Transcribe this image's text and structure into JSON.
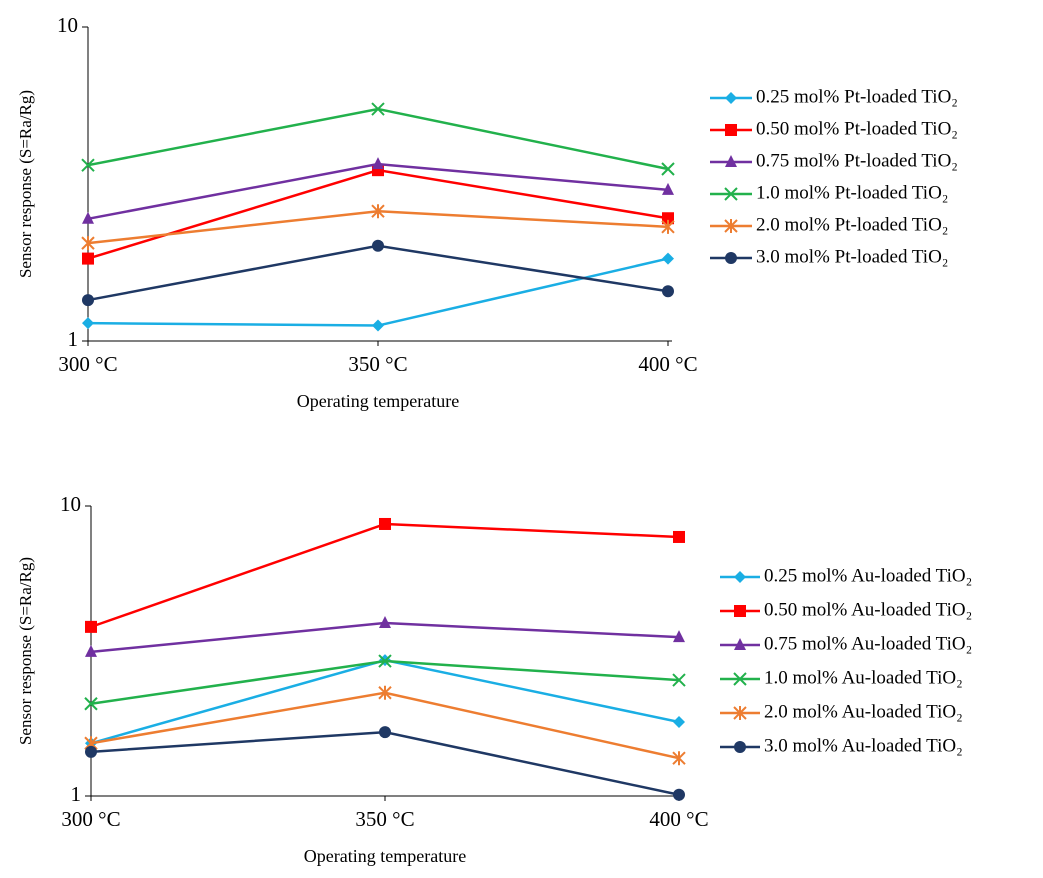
{
  "chart_data": [
    {
      "type": "line",
      "log_scale": true,
      "grid": false,
      "legend": "right",
      "x_label": "Operating temperature",
      "y_label": "Sensor response (S=Ra/Rg)",
      "categories": [
        "300 °C",
        "350 °C",
        "400 °C"
      ],
      "ylim": [
        1,
        10
      ],
      "yticks": [
        1,
        10
      ],
      "series": [
        {
          "name": "0.25 mol% Pt-loaded TiO₂",
          "color": "#1aaee4",
          "marker": "diamond",
          "values": [
            1.14,
            1.12,
            1.83
          ]
        },
        {
          "name": "0.50 mol% Pt-loaded TiO₂",
          "color": "#ff0000",
          "marker": "square",
          "values": [
            1.83,
            3.5,
            2.46
          ]
        },
        {
          "name": "0.75 mol% Pt-loaded TiO₂",
          "color": "#7030a0",
          "marker": "triangle",
          "values": [
            2.45,
            3.66,
            3.03
          ]
        },
        {
          "name": "1.0 mol% Pt-loaded TiO₂",
          "color": "#22b14c",
          "marker": "x",
          "values": [
            3.63,
            5.48,
            3.53
          ]
        },
        {
          "name": "2.0 mol% Pt-loaded TiO₂",
          "color": "#ed7d31",
          "marker": "asterisk",
          "values": [
            2.05,
            2.59,
            2.31
          ]
        },
        {
          "name": "3.0 mol% Pt-loaded TiO₂",
          "color": "#1f3864",
          "marker": "circle",
          "values": [
            1.35,
            2.01,
            1.44
          ]
        }
      ]
    },
    {
      "type": "line",
      "log_scale": true,
      "grid": false,
      "legend": "right",
      "x_label": "Operating temperature",
      "y_label": "Sensor response (S=Ra/Rg)",
      "categories": [
        "300 °C",
        "350 °C",
        "400 °C"
      ],
      "ylim": [
        1,
        10
      ],
      "yticks": [
        1,
        10
      ],
      "series": [
        {
          "name": "0.25 mol% Au-loaded TiO₂",
          "color": "#1aaee4",
          "marker": "diamond",
          "values": [
            1.52,
            2.94,
            1.8
          ]
        },
        {
          "name": "0.50 mol% Au-loaded TiO₂",
          "color": "#ff0000",
          "marker": "square",
          "values": [
            3.83,
            8.67,
            7.82
          ]
        },
        {
          "name": "0.75 mol% Au-loaded TiO₂",
          "color": "#7030a0",
          "marker": "triangle",
          "values": [
            3.14,
            3.95,
            3.53
          ]
        },
        {
          "name": "1.0 mol% Au-loaded TiO₂",
          "color": "#22b14c",
          "marker": "x",
          "values": [
            2.08,
            2.92,
            2.51
          ]
        },
        {
          "name": "2.0 mol% Au-loaded TiO₂",
          "color": "#ed7d31",
          "marker": "asterisk",
          "values": [
            1.52,
            2.27,
            1.35
          ]
        },
        {
          "name": "3.0 mol% Au-loaded TiO₂",
          "color": "#1f3864",
          "marker": "circle",
          "values": [
            1.42,
            1.66,
            1.01
          ]
        }
      ]
    }
  ]
}
